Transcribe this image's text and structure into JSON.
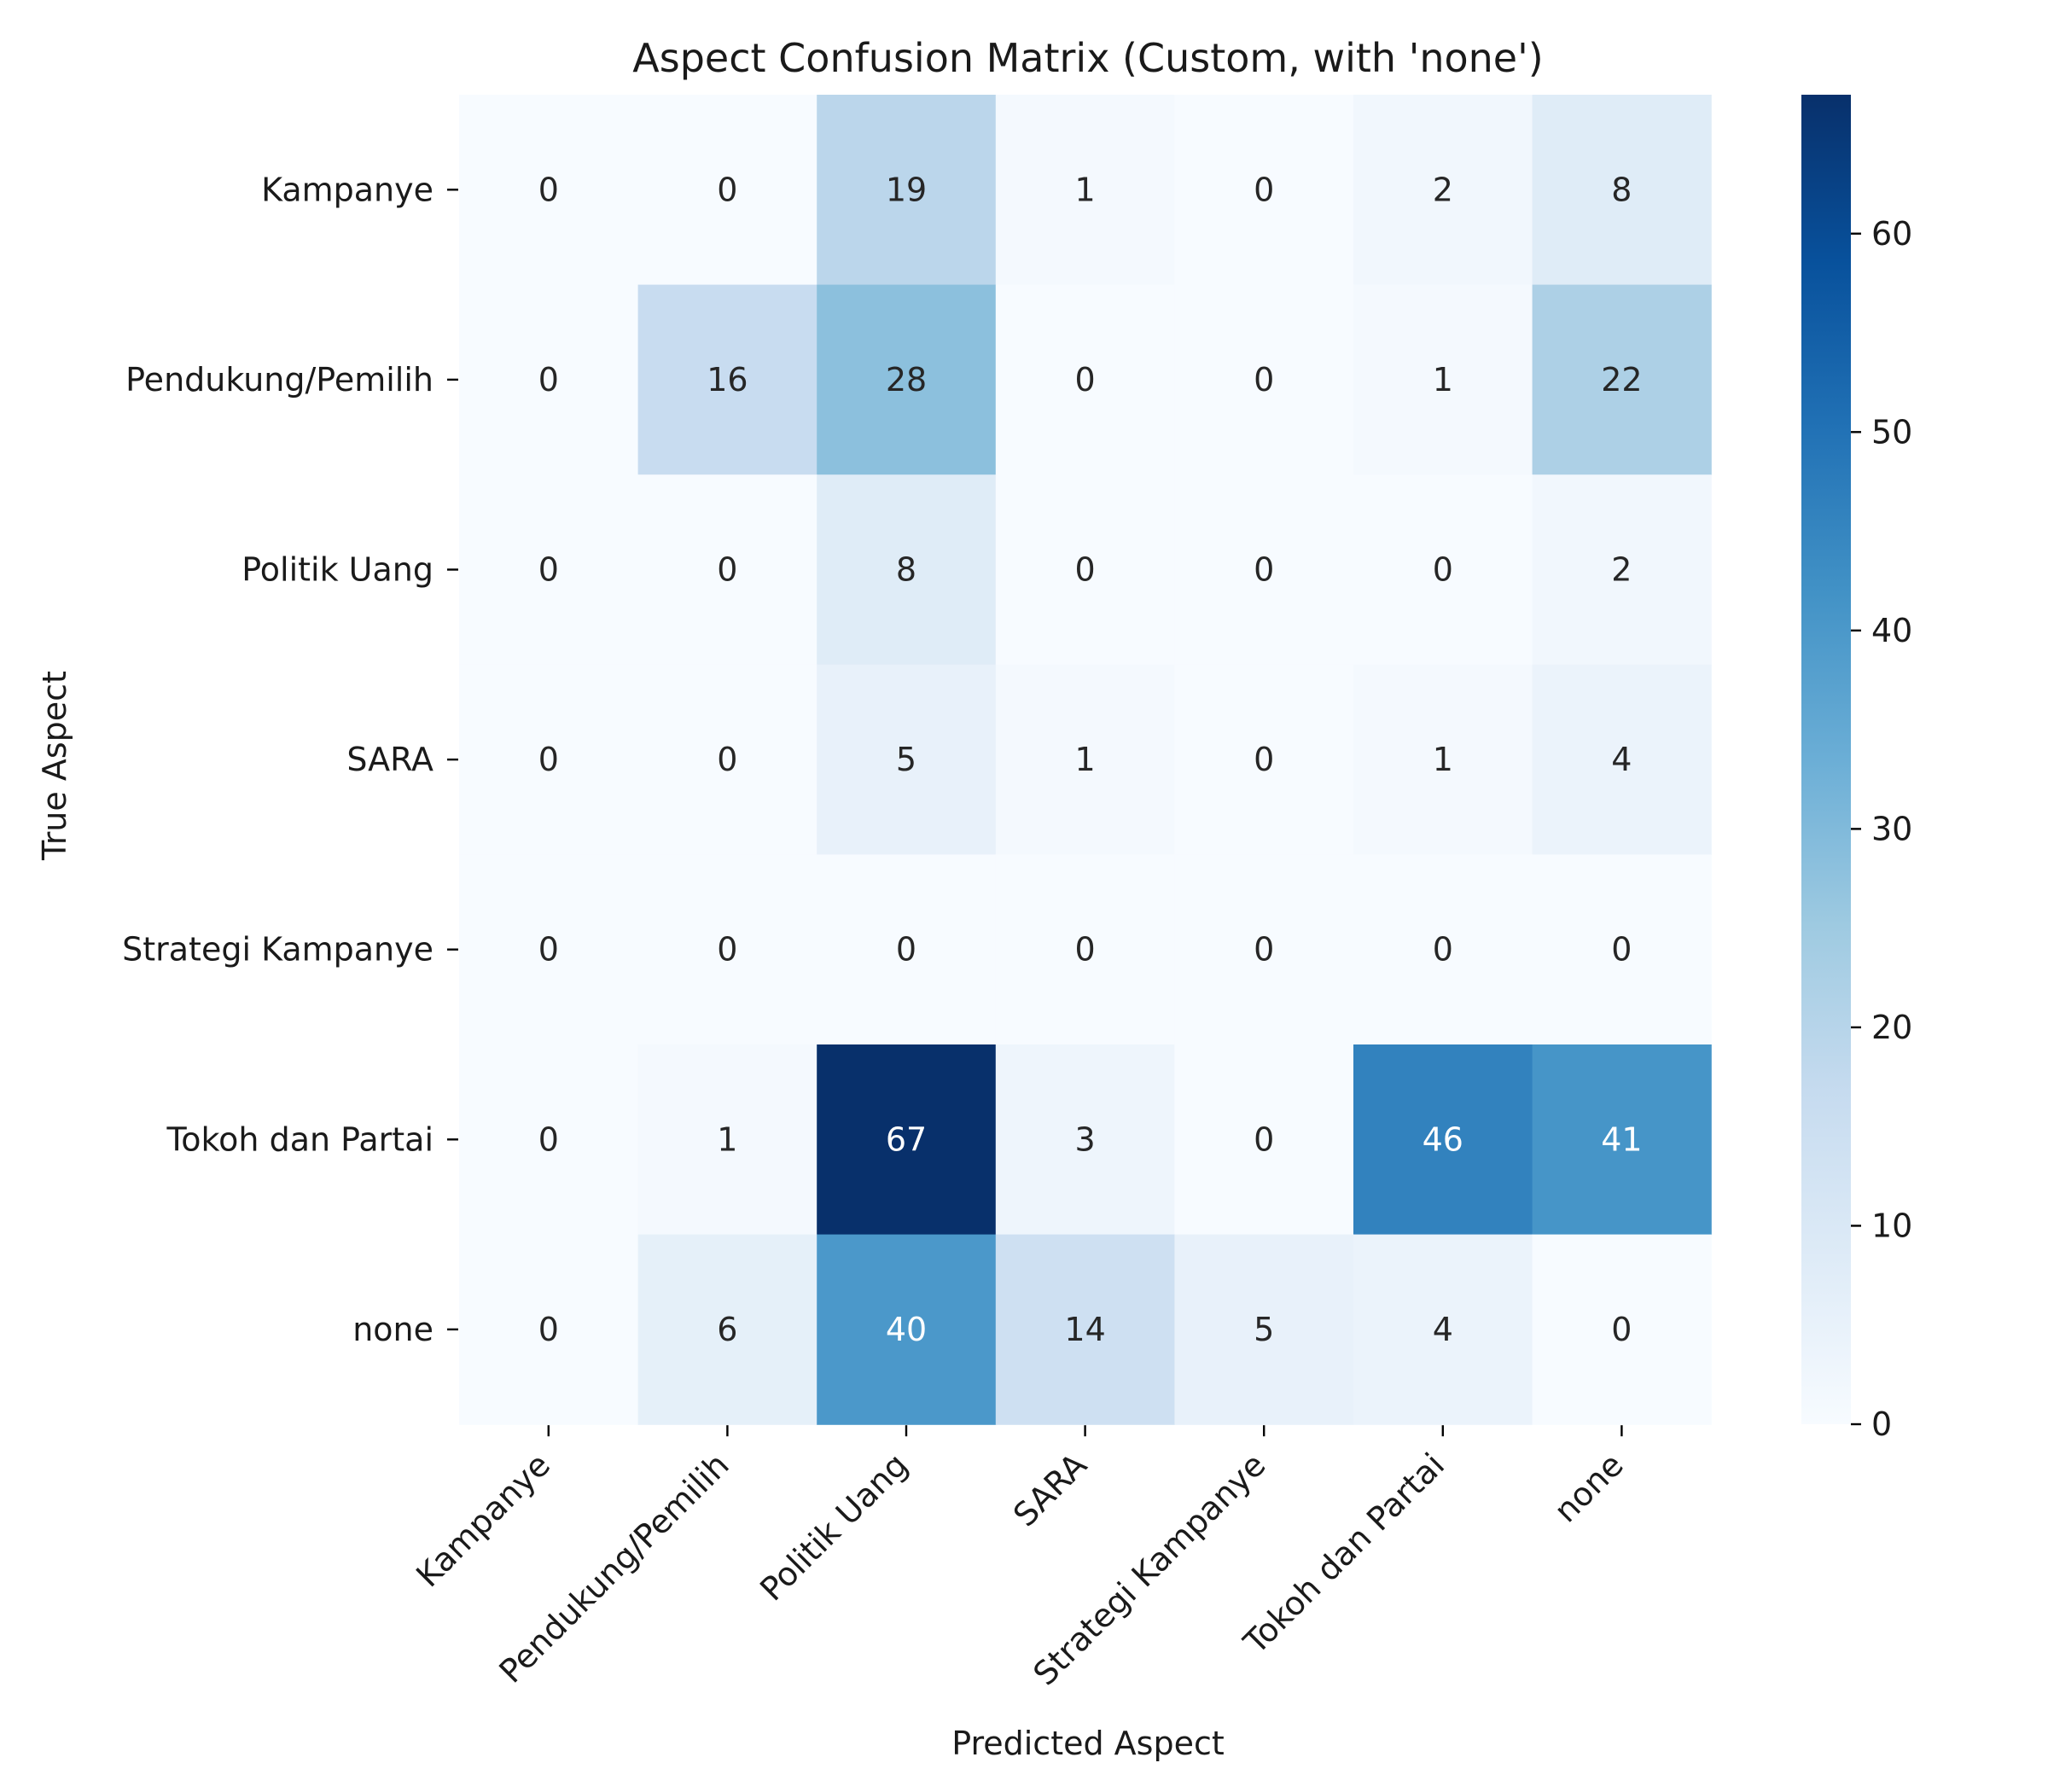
{
  "chart_data": {
    "type": "heatmap",
    "title": "Aspect Confusion Matrix (Custom, with 'none')",
    "xlabel": "Predicted Aspect",
    "ylabel": "True Aspect",
    "x_categories": [
      "Kampanye",
      "Pendukung/Pemilih",
      "Politik Uang",
      "SARA",
      "Strategi Kampanye",
      "Tokoh dan Partai",
      "none"
    ],
    "y_categories": [
      "Kampanye",
      "Pendukung/Pemilih",
      "Politik Uang",
      "SARA",
      "Strategi Kampanye",
      "Tokoh dan Partai",
      "none"
    ],
    "values": [
      [
        0,
        0,
        19,
        1,
        0,
        2,
        8
      ],
      [
        0,
        16,
        28,
        0,
        0,
        1,
        22
      ],
      [
        0,
        0,
        8,
        0,
        0,
        0,
        2
      ],
      [
        0,
        0,
        5,
        1,
        0,
        1,
        4
      ],
      [
        0,
        0,
        0,
        0,
        0,
        0,
        0
      ],
      [
        0,
        1,
        67,
        3,
        0,
        46,
        41
      ],
      [
        0,
        6,
        40,
        14,
        5,
        4,
        0
      ]
    ],
    "colormap": "Blues",
    "value_range": [
      0,
      67
    ],
    "colorbar_ticks": [
      0,
      10,
      20,
      30,
      40,
      50,
      60
    ],
    "annotated": true
  }
}
